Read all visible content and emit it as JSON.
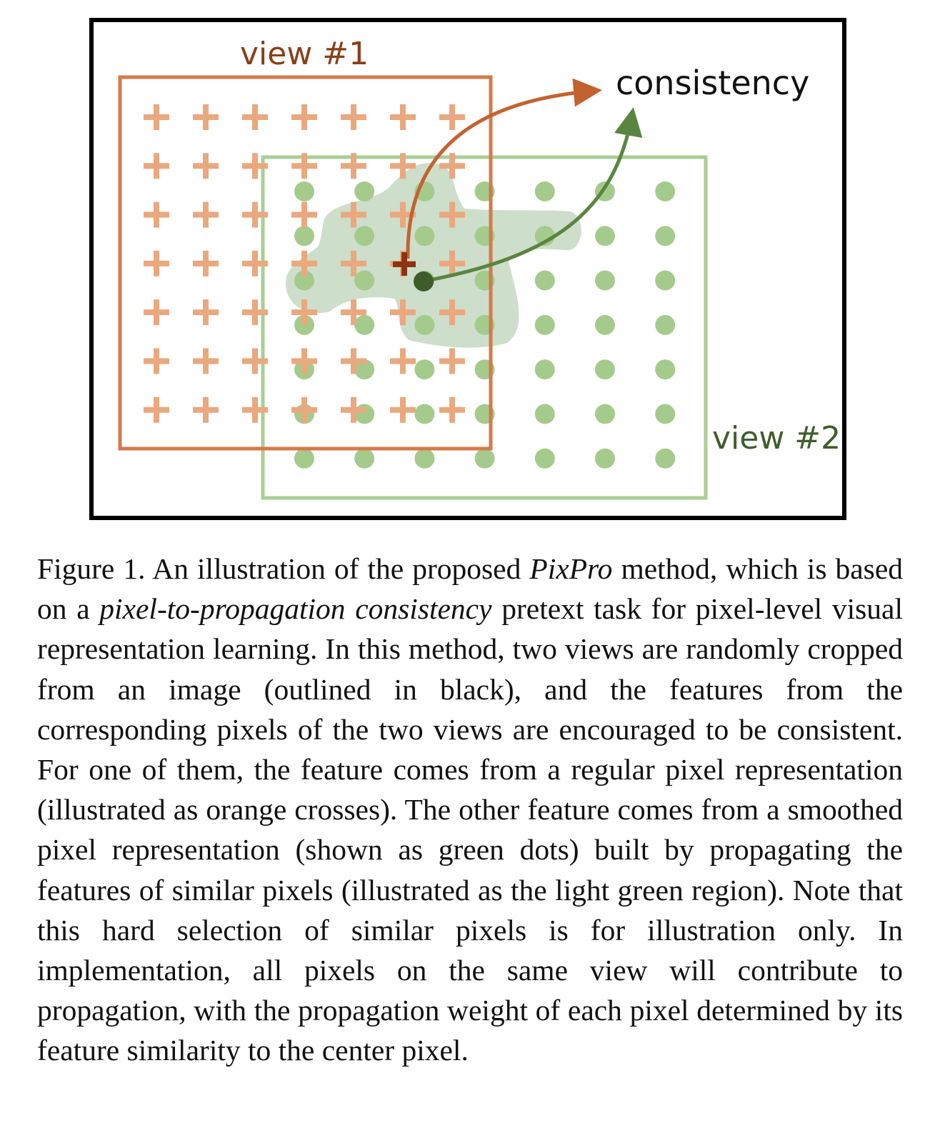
{
  "figure": {
    "view1_label": "view #1",
    "view2_label": "view #2",
    "consistency_label": "consistency",
    "colors": {
      "image_outline": "#000000",
      "view1": "#d5794a",
      "view1_label": "#8a3f16",
      "crosses": "#eaa87e",
      "view2": "#a9cf95",
      "view2_label": "#3f5e2c",
      "dots": "#a4cb8c",
      "region": "#bcd3b8",
      "arrow_orange": "#c4622f",
      "arrow_green": "#5a8540",
      "center_cross": "#8a3515",
      "center_dot": "#3e5c2a"
    },
    "cross_grid": {
      "rows": 7,
      "cols": 7
    },
    "dot_grid": {
      "rows": 7,
      "cols": 7
    }
  },
  "caption": {
    "prefix": "Figure 1.",
    "part1": " An illustration of the proposed ",
    "method_name": "PixPro",
    "part2": " method, which is based on a ",
    "task_name": "pixel-to-propagation consistency",
    "part3": " pretext task for pixel-level visual representation learning. In this method, two views are randomly cropped from an image (outlined in black), and the features from the corresponding pixels of the two views are encouraged to be consistent.  For one of them, the feature comes from a regular pixel representation (illustrated as orange crosses).  The other feature comes from a smoothed pixel representation (shown as green dots) built by propagating the features of similar pixels (illustrated as the light green region).  Note that this hard selection of similar pixels is for illustration only. In implementation, all pixels on the same view will contribute to propagation, with the propagation weight of each pixel determined by its feature similarity to the center pixel."
  }
}
